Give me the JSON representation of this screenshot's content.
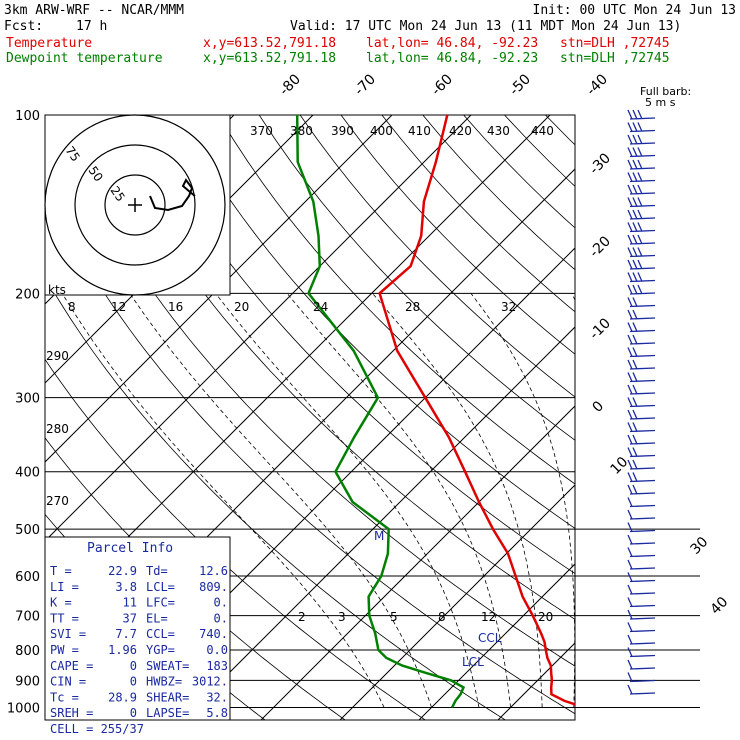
{
  "header": {
    "model": "3km ARW-WRF -- NCAR/MMM",
    "init": "Init: 00 UTC Mon 24 Jun 13",
    "fcst_label": "Fcst:",
    "fcst_value": "17 h",
    "valid": "Valid: 17 UTC Mon 24 Jun 13 (11 MDT Mon 24 Jun 13)",
    "rows": [
      {
        "name": "Temperature",
        "xy": "x,y=613.52,791.18",
        "latlon": "lat,lon= 46.84, -92.23",
        "stn": "stn=DLH ,72745",
        "color": "#e00000"
      },
      {
        "name": "Dewpoint temperature",
        "xy": "x,y=613.52,791.18",
        "latlon": "lat,lon= 46.84, -92.23",
        "stn": "stn=DLH ,72745",
        "color": "#008000"
      }
    ]
  },
  "chart_data": {
    "type": "line",
    "subtype": "skew-t log-p",
    "pressure_levels": [
      100,
      200,
      300,
      400,
      500,
      600,
      700,
      800,
      900,
      1000
    ],
    "temp_labels": [
      "-80",
      "-70",
      "-60",
      "-50",
      "-40",
      "-30",
      "-20",
      "-10",
      "0",
      "10",
      "30",
      "40"
    ],
    "theta_labels": [
      "370",
      "380",
      "390",
      "400",
      "410",
      "420",
      "430",
      "440",
      "290",
      "280",
      "270"
    ],
    "mixing_labels_upper": [
      "8",
      "12",
      "16",
      "20",
      "24",
      "28",
      "32"
    ],
    "mixing_labels_lower": [
      "2",
      "3",
      "5",
      "8",
      "12",
      "20"
    ],
    "series": [
      {
        "name": "Temperature",
        "color": "#e00000",
        "points": [
          [
            1000,
            29.4
          ],
          [
            975,
            26.0
          ],
          [
            950,
            23.5
          ],
          [
            925,
            22.6
          ],
          [
            900,
            21.8
          ],
          [
            875,
            20.8
          ],
          [
            850,
            19.8
          ],
          [
            825,
            18.4
          ],
          [
            800,
            17.2
          ],
          [
            775,
            16.0
          ],
          [
            750,
            14.5
          ],
          [
            700,
            11.2
          ],
          [
            650,
            7.5
          ],
          [
            600,
            4.0
          ],
          [
            550,
            0.2
          ],
          [
            500,
            -4.8
          ],
          [
            450,
            -10.0
          ],
          [
            400,
            -15.6
          ],
          [
            350,
            -22.0
          ],
          [
            300,
            -30.0
          ],
          [
            250,
            -39.5
          ],
          [
            200,
            -49.0
          ],
          [
            180,
            -48.5
          ],
          [
            160,
            -51.0
          ],
          [
            140,
            -55.0
          ],
          [
            120,
            -58.5
          ],
          [
            100,
            -63.0
          ]
        ]
      },
      {
        "name": "Dewpoint temperature",
        "color": "#008000",
        "points": [
          [
            1000,
            12.6
          ],
          [
            975,
            12.2
          ],
          [
            950,
            12.0
          ],
          [
            925,
            11.5
          ],
          [
            900,
            9.0
          ],
          [
            875,
            5.0
          ],
          [
            850,
            1.0
          ],
          [
            825,
            -2.0
          ],
          [
            800,
            -4.0
          ],
          [
            750,
            -6.5
          ],
          [
            700,
            -9.5
          ],
          [
            650,
            -12.0
          ],
          [
            600,
            -13.0
          ],
          [
            550,
            -15.0
          ],
          [
            500,
            -18.0
          ],
          [
            450,
            -26.0
          ],
          [
            400,
            -32.0
          ],
          [
            350,
            -34.0
          ],
          [
            300,
            -36.0
          ],
          [
            250,
            -45.0
          ],
          [
            200,
            -58.0
          ],
          [
            180,
            -60.0
          ],
          [
            160,
            -64.0
          ],
          [
            140,
            -69.0
          ],
          [
            120,
            -76.0
          ],
          [
            100,
            -82.0
          ]
        ]
      }
    ],
    "annotations": [
      "CCL",
      "LCL",
      "M"
    ],
    "hodograph": {
      "rings": [
        "25",
        "50",
        "75"
      ],
      "unit": "kts"
    },
    "wind_barbs": {
      "title": "Full barb:",
      "subtitle": "5 m s"
    }
  },
  "parcel_info": {
    "title": "Parcel Info",
    "rows": [
      [
        "T",
        "22.9",
        "Td",
        "12.6"
      ],
      [
        "LI",
        "3.8",
        "LCL",
        "809."
      ],
      [
        "K",
        "11",
        "LFC",
        "0."
      ],
      [
        "TT",
        "37",
        "EL",
        "0."
      ],
      [
        "SVI",
        "7.7",
        "CCL",
        "740."
      ],
      [
        "PW",
        "1.96",
        "YGP",
        "0.0"
      ],
      [
        "CAPE",
        "0",
        "SWEAT",
        "183"
      ],
      [
        "CIN",
        "0",
        "HWBZ",
        "3012."
      ],
      [
        "Tc",
        "28.9",
        "SHEAR",
        "32."
      ],
      [
        "SREH",
        "0",
        "LAPSE",
        "5.8"
      ]
    ],
    "cell": "CELL = 255/37"
  }
}
